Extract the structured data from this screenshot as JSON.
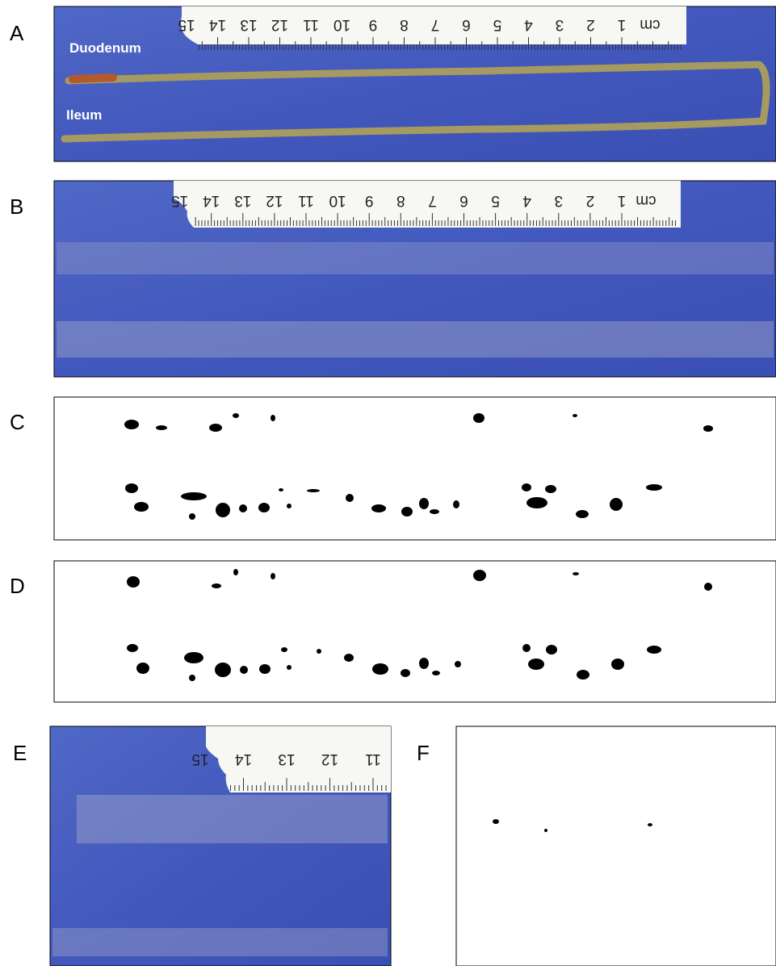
{
  "panels": [
    {
      "label": "A",
      "texts": [
        "Duodenum",
        "Ileum"
      ],
      "ruler_unit": "cm",
      "ruler": [
        1,
        2,
        3,
        4,
        5,
        6,
        7,
        8,
        9,
        10,
        11,
        12,
        13,
        14,
        15
      ]
    },
    {
      "label": "B",
      "ruler_unit": "cm",
      "ruler": [
        1,
        2,
        3,
        4,
        5,
        6,
        7,
        8,
        9,
        10,
        11,
        12,
        13,
        14,
        15
      ]
    },
    {
      "label": "C"
    },
    {
      "label": "D"
    },
    {
      "label": "E",
      "ruler": [
        11,
        12,
        13,
        14,
        15
      ]
    },
    {
      "label": "F"
    }
  ]
}
